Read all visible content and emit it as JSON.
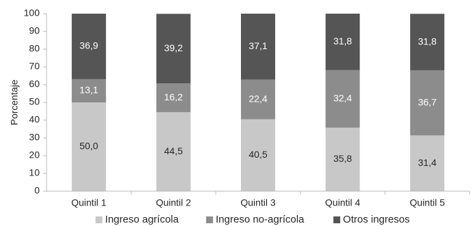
{
  "chart_data": {
    "type": "bar",
    "stacked": true,
    "title": "",
    "xlabel": "",
    "ylabel": "Porcentaje",
    "ylim": [
      0,
      100
    ],
    "yticks": [
      0,
      10,
      20,
      30,
      40,
      50,
      60,
      70,
      80,
      90,
      100
    ],
    "categories": [
      "Quintil 1",
      "Quintil 2",
      "Quintil 3",
      "Quintil 4",
      "Quintil 5"
    ],
    "series": [
      {
        "name": "Ingreso agrícola",
        "values": [
          50.0,
          44.5,
          40.5,
          35.8,
          31.4
        ],
        "labels": [
          "50,0",
          "44,5",
          "40,5",
          "35,8",
          "31,4"
        ],
        "color": "#c8c8c8",
        "label_color": "#262626"
      },
      {
        "name": "Ingreso no-agrícola",
        "values": [
          13.1,
          16.2,
          22.4,
          32.4,
          36.7
        ],
        "labels": [
          "13,1",
          "16,2",
          "22,4",
          "32,4",
          "36,7"
        ],
        "color": "#8c8c8c",
        "label_color": "#ffffff"
      },
      {
        "name": "Otros ingresos",
        "values": [
          36.9,
          39.2,
          37.1,
          31.8,
          31.8
        ],
        "labels": [
          "36,9",
          "39,2",
          "37,1",
          "31,8",
          "31,8"
        ],
        "color": "#555555",
        "label_color": "#ffffff"
      }
    ],
    "grid": false,
    "legend_position": "bottom"
  }
}
